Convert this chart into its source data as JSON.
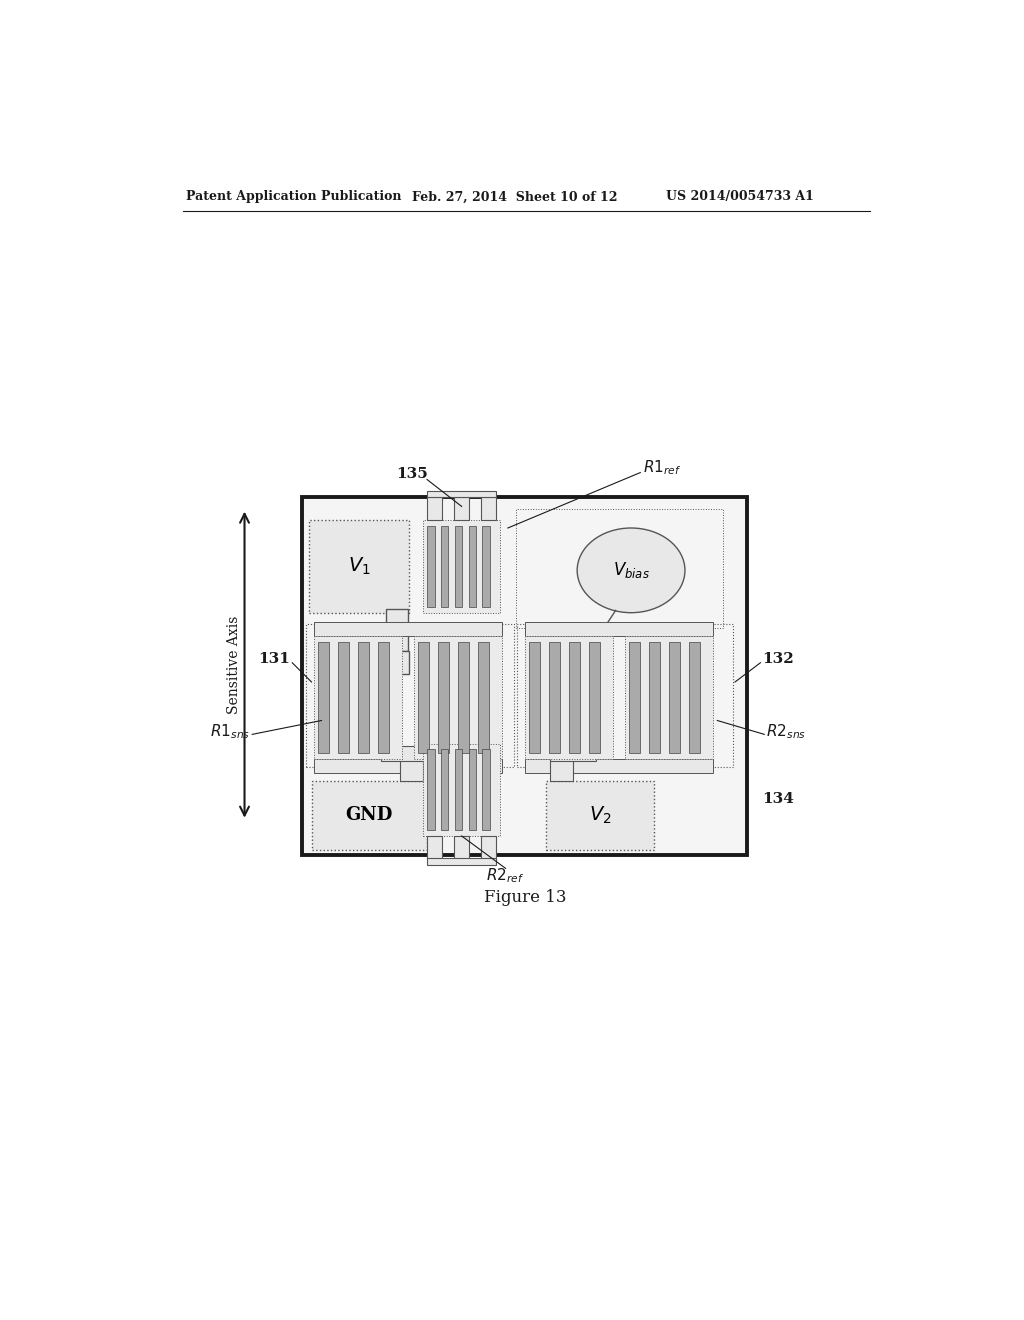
{
  "header_left": "Patent Application Publication",
  "header_mid": "Feb. 27, 2014  Sheet 10 of 12",
  "header_right": "US 2014/0054733 A1",
  "figure_label": "Figure 13",
  "background_color": "#ffffff",
  "line_color": "#1a1a1a",
  "dark_gray": "#555555",
  "med_gray": "#888888",
  "light_gray": "#cccccc",
  "bar_gray": "#aaaaaa",
  "pad_gray": "#e8e8e8"
}
